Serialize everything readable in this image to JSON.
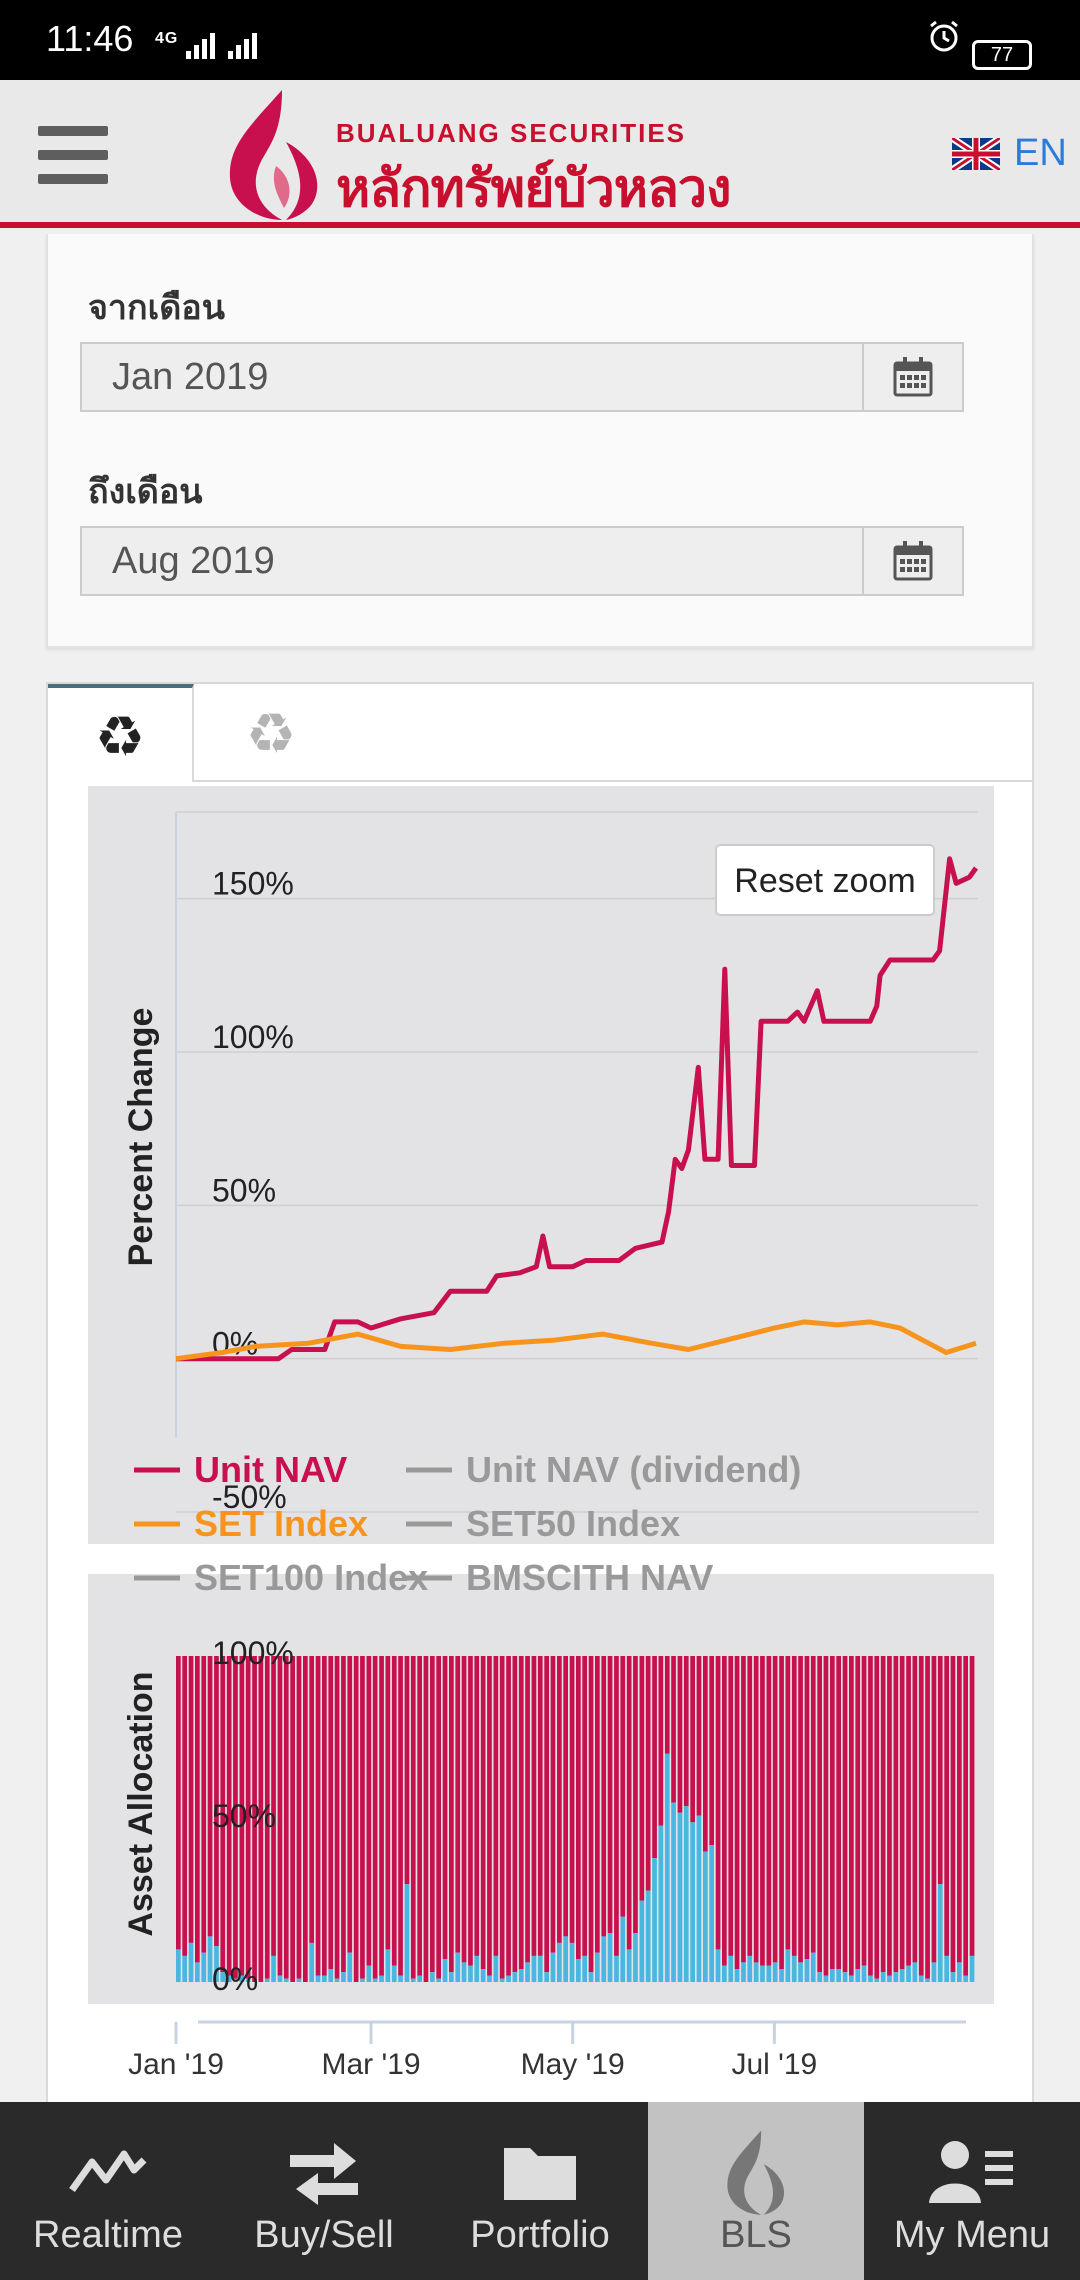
{
  "status_bar": {
    "time": "11:46",
    "network": "4G",
    "battery": "77"
  },
  "header": {
    "brand_en": "BUALUANG SECURITIES",
    "brand_th": "หลักทรัพย์บัวหลวง",
    "language": "EN"
  },
  "filter": {
    "from_label": "จากเดือน",
    "from_value": "Jan 2019",
    "to_label": "ถึงเดือน",
    "to_value": "Aug 2019"
  },
  "tabs": [
    {
      "icon": "recycle-icon",
      "active": true
    },
    {
      "icon": "recycle-icon",
      "active": false
    }
  ],
  "reset_zoom_label": "Reset zoom",
  "chart_data": [
    {
      "type": "line",
      "ylabel": "Percent Change",
      "ylim": [
        -50,
        175
      ],
      "y_ticks": [
        "-50%",
        "0%",
        "50%",
        "100%",
        "150%"
      ],
      "x_ticks": [
        "Jan '19",
        "Mar '19",
        "May '19",
        "Jul '19"
      ],
      "xlim": [
        "2019-01-01",
        "2019-08-31"
      ],
      "grid": true,
      "series": [
        {
          "name": "Unit NAV",
          "color": "#c8104e",
          "visible": true,
          "points": [
            [
              "2019-01-01",
              0
            ],
            [
              "2019-01-20",
              0
            ],
            [
              "2019-02-01",
              0
            ],
            [
              "2019-02-05",
              3
            ],
            [
              "2019-02-15",
              3
            ],
            [
              "2019-02-18",
              12
            ],
            [
              "2019-02-25",
              12
            ],
            [
              "2019-03-01",
              10
            ],
            [
              "2019-03-10",
              13
            ],
            [
              "2019-03-20",
              15
            ],
            [
              "2019-03-25",
              22
            ],
            [
              "2019-04-05",
              22
            ],
            [
              "2019-04-08",
              27
            ],
            [
              "2019-04-15",
              28
            ],
            [
              "2019-04-20",
              30
            ],
            [
              "2019-04-22",
              40
            ],
            [
              "2019-04-24",
              30
            ],
            [
              "2019-05-01",
              30
            ],
            [
              "2019-05-05",
              32
            ],
            [
              "2019-05-15",
              32
            ],
            [
              "2019-05-20",
              36
            ],
            [
              "2019-05-28",
              38
            ],
            [
              "2019-05-30",
              48
            ],
            [
              "2019-06-01",
              65
            ],
            [
              "2019-06-03",
              62
            ],
            [
              "2019-06-05",
              68
            ],
            [
              "2019-06-08",
              95
            ],
            [
              "2019-06-10",
              65
            ],
            [
              "2019-06-14",
              65
            ],
            [
              "2019-06-16",
              127
            ],
            [
              "2019-06-18",
              63
            ],
            [
              "2019-06-25",
              63
            ],
            [
              "2019-06-27",
              110
            ],
            [
              "2019-07-05",
              110
            ],
            [
              "2019-07-08",
              113
            ],
            [
              "2019-07-10",
              110
            ],
            [
              "2019-07-14",
              120
            ],
            [
              "2019-07-16",
              110
            ],
            [
              "2019-07-30",
              110
            ],
            [
              "2019-08-01",
              115
            ],
            [
              "2019-08-02",
              125
            ],
            [
              "2019-08-05",
              130
            ],
            [
              "2019-08-18",
              130
            ],
            [
              "2019-08-20",
              133
            ],
            [
              "2019-08-23",
              163
            ],
            [
              "2019-08-25",
              155
            ],
            [
              "2019-08-29",
              157
            ],
            [
              "2019-08-31",
              160
            ]
          ]
        },
        {
          "name": "SET Index",
          "color": "#f7941d",
          "visible": true,
          "points": [
            [
              "2019-01-01",
              0
            ],
            [
              "2019-01-15",
              2
            ],
            [
              "2019-01-25",
              4
            ],
            [
              "2019-02-10",
              5
            ],
            [
              "2019-02-25",
              8
            ],
            [
              "2019-03-10",
              4
            ],
            [
              "2019-03-25",
              3
            ],
            [
              "2019-04-10",
              5
            ],
            [
              "2019-04-25",
              6
            ],
            [
              "2019-05-10",
              8
            ],
            [
              "2019-05-25",
              5
            ],
            [
              "2019-06-05",
              3
            ],
            [
              "2019-06-20",
              7
            ],
            [
              "2019-07-01",
              10
            ],
            [
              "2019-07-10",
              12
            ],
            [
              "2019-07-20",
              11
            ],
            [
              "2019-07-30",
              12
            ],
            [
              "2019-08-08",
              10
            ],
            [
              "2019-08-15",
              6
            ],
            [
              "2019-08-22",
              2
            ],
            [
              "2019-08-28",
              4
            ],
            [
              "2019-08-31",
              5
            ]
          ]
        },
        {
          "name": "Unit NAV (dividend)",
          "color": "#999999",
          "visible": false
        },
        {
          "name": "SET50 Index",
          "color": "#999999",
          "visible": false
        },
        {
          "name": "SET100 Index",
          "color": "#999999",
          "visible": false
        },
        {
          "name": "BMSCITH NAV",
          "color": "#999999",
          "visible": false
        }
      ],
      "legend": [
        "Unit NAV",
        "Unit NAV (dividend)",
        "SET Index",
        "SET50 Index",
        "SET100 Index",
        "BMSCITH NAV"
      ]
    },
    {
      "type": "bar",
      "stacked": true,
      "ylabel": "Asset Allocation",
      "ylim": [
        0,
        100
      ],
      "y_ticks": [
        "0%",
        "50%",
        "100%"
      ],
      "series_colors": {
        "top": "#c8104e",
        "bottom": "#4ab7e0"
      },
      "bottom_values": [
        10,
        8,
        12,
        6,
        9,
        14,
        11,
        3,
        2,
        1,
        2,
        1,
        0,
        0,
        1,
        8,
        2,
        1,
        0,
        1,
        0,
        12,
        2,
        2,
        4,
        1,
        3,
        9,
        0,
        1,
        5,
        1,
        2,
        10,
        5,
        2,
        30,
        1,
        2,
        0,
        3,
        1,
        7,
        3,
        9,
        6,
        5,
        8,
        4,
        2,
        8,
        1,
        2,
        3,
        4,
        6,
        8,
        8,
        3,
        9,
        12,
        14,
        12,
        7,
        8,
        3,
        9,
        14,
        15,
        8,
        20,
        10,
        15,
        25,
        28,
        38,
        48,
        70,
        55,
        52,
        54,
        49,
        51,
        40,
        42,
        10,
        5,
        8,
        4,
        6,
        8,
        6,
        5,
        5,
        6,
        4,
        10,
        8,
        6,
        7,
        9,
        3,
        2,
        4,
        4,
        3,
        2,
        4,
        5,
        2,
        1,
        3,
        2,
        3,
        4,
        5,
        6,
        2,
        1,
        6,
        30,
        8,
        3,
        6,
        2,
        8
      ]
    }
  ]
}
